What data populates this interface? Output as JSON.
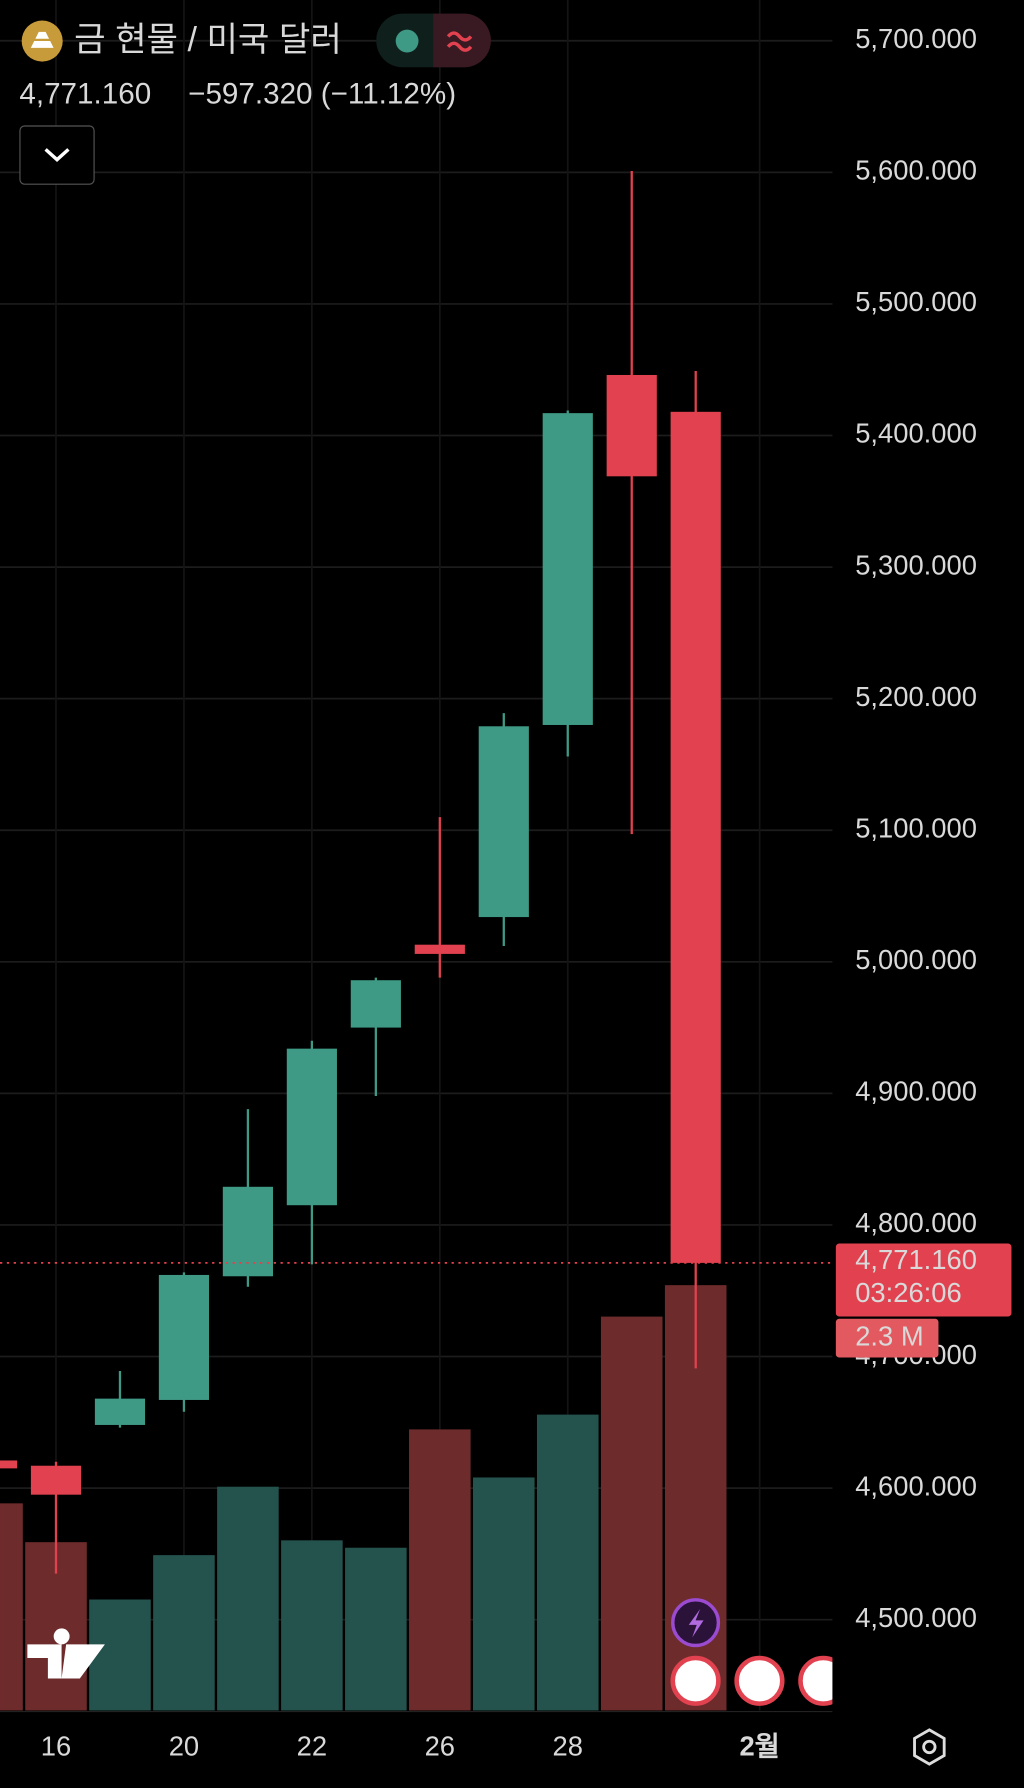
{
  "header": {
    "title": "금 현물 / 미국 달러",
    "price": "4,771.160",
    "change": "−597.320 (−11.12%)"
  },
  "chart_data": {
    "type": "candlestick",
    "categories": [
      null,
      "16",
      null,
      "20",
      null,
      "22",
      null,
      "26",
      null,
      "28",
      null,
      null,
      "2월"
    ],
    "open": [
      4621,
      4617,
      4648,
      4667,
      4761,
      4815,
      4950,
      5013,
      5034,
      5180,
      5446,
      5418,
      null
    ],
    "high": [
      4621,
      4620,
      4689,
      4764,
      4888,
      4940,
      4988,
      5110,
      5189,
      5419,
      5601,
      5449,
      null
    ],
    "low": [
      4615,
      4535,
      4646,
      4658,
      4753,
      4770,
      4898,
      4988,
      5012,
      5156,
      5097,
      4691,
      null
    ],
    "close": [
      4615,
      4595,
      4668,
      4762,
      4829,
      4934,
      4986,
      5006,
      5179,
      5417,
      5369,
      4771.16,
      null
    ],
    "volume": [
      1.12,
      0.91,
      0.6,
      0.84,
      1.21,
      0.92,
      0.88,
      1.52,
      1.26,
      1.6,
      2.13,
      2.3,
      null
    ],
    "volume_ylim": [
      0,
      9.25
    ],
    "up_color": "#3f9a85",
    "down_color": "#e2424f",
    "up_volume_color": "#24524d",
    "down_volume_color": "#6e2b2c",
    "ylim": [
      4431,
      5731
    ],
    "yticks": [
      {
        "value": 4500,
        "label": "4,500.000"
      },
      {
        "value": 4600,
        "label": "4,600.000"
      },
      {
        "value": 4700,
        "label": "4,700.000"
      },
      {
        "value": 4800,
        "label": "4,800.000"
      },
      {
        "value": 4900,
        "label": "4,900.000"
      },
      {
        "value": 5000,
        "label": "5,000.000"
      },
      {
        "value": 5100,
        "label": "5,100.000"
      },
      {
        "value": 5200,
        "label": "5,200.000"
      },
      {
        "value": 5300,
        "label": "5,300.000"
      },
      {
        "value": 5400,
        "label": "5,400.000"
      },
      {
        "value": 5500,
        "label": "5,500.000"
      },
      {
        "value": 5600,
        "label": "5,600.000"
      },
      {
        "value": 5700,
        "label": "5,700.000"
      }
    ],
    "grid": true,
    "last_price": {
      "value": 4771.16,
      "label": "4,771.160"
    },
    "countdown": "03:26:06",
    "volume_label": "2.3 M"
  }
}
